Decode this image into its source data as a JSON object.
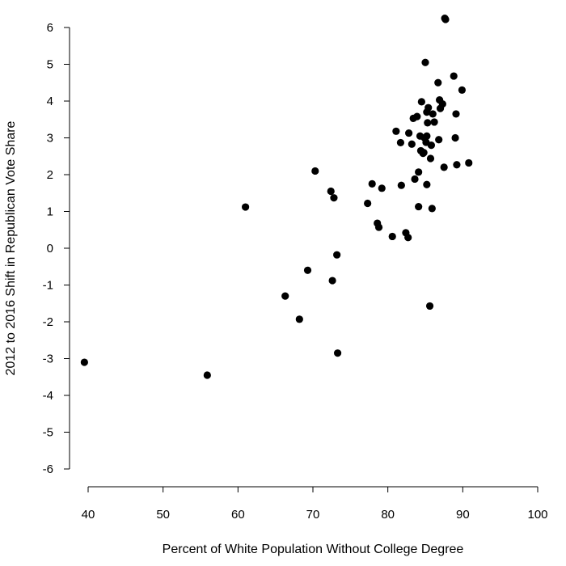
{
  "chart_data": {
    "type": "scatter",
    "title": "",
    "xlabel": "Percent of White Population Without College Degree",
    "ylabel": "2012 to 2016 Shift in Republican Vote Share",
    "xlim": [
      40,
      100
    ],
    "ylim": [
      -6,
      6
    ],
    "xticks": [
      "40",
      "50",
      "60",
      "70",
      "80",
      "90",
      "100"
    ],
    "yticks": [
      "-6",
      "-5",
      "-4",
      "-3",
      "-2",
      "-1",
      "0",
      "1",
      "2",
      "3",
      "4",
      "5",
      "6"
    ],
    "grid": false,
    "marker_color": "#000000",
    "series": [
      {
        "points": [
          {
            "x": 39.5,
            "y": -3.1
          },
          {
            "x": 55.9,
            "y": -3.45
          },
          {
            "x": 61.0,
            "y": 1.12
          },
          {
            "x": 66.3,
            "y": -1.3
          },
          {
            "x": 68.2,
            "y": -1.93
          },
          {
            "x": 69.3,
            "y": -0.6
          },
          {
            "x": 70.3,
            "y": 2.1
          },
          {
            "x": 72.4,
            "y": 1.55
          },
          {
            "x": 72.6,
            "y": -0.88
          },
          {
            "x": 72.8,
            "y": 1.37
          },
          {
            "x": 73.2,
            "y": -0.18
          },
          {
            "x": 73.3,
            "y": -2.85
          },
          {
            "x": 77.3,
            "y": 1.22
          },
          {
            "x": 77.9,
            "y": 1.75
          },
          {
            "x": 78.6,
            "y": 0.68
          },
          {
            "x": 78.8,
            "y": 0.57
          },
          {
            "x": 79.2,
            "y": 1.63
          },
          {
            "x": 80.6,
            "y": 0.32
          },
          {
            "x": 81.1,
            "y": 3.18
          },
          {
            "x": 81.7,
            "y": 2.87
          },
          {
            "x": 81.8,
            "y": 1.71
          },
          {
            "x": 82.4,
            "y": 0.42
          },
          {
            "x": 82.7,
            "y": 0.29
          },
          {
            "x": 82.8,
            "y": 3.13
          },
          {
            "x": 83.2,
            "y": 2.83
          },
          {
            "x": 83.4,
            "y": 3.53
          },
          {
            "x": 83.6,
            "y": 1.88
          },
          {
            "x": 83.9,
            "y": 3.58
          },
          {
            "x": 84.1,
            "y": 2.07
          },
          {
            "x": 84.1,
            "y": 1.13
          },
          {
            "x": 84.3,
            "y": 3.05
          },
          {
            "x": 84.4,
            "y": 2.65
          },
          {
            "x": 84.5,
            "y": 3.98
          },
          {
            "x": 84.7,
            "y": 2.58
          },
          {
            "x": 84.8,
            "y": 2.6
          },
          {
            "x": 84.9,
            "y": 3.0
          },
          {
            "x": 85.0,
            "y": 5.05
          },
          {
            "x": 85.1,
            "y": 2.88
          },
          {
            "x": 85.2,
            "y": 3.7
          },
          {
            "x": 85.2,
            "y": 3.05
          },
          {
            "x": 85.2,
            "y": 1.73
          },
          {
            "x": 85.3,
            "y": 3.41
          },
          {
            "x": 85.4,
            "y": 3.82
          },
          {
            "x": 85.6,
            "y": -1.57
          },
          {
            "x": 85.7,
            "y": 2.44
          },
          {
            "x": 85.8,
            "y": 2.8
          },
          {
            "x": 85.9,
            "y": 1.08
          },
          {
            "x": 86.0,
            "y": 3.65
          },
          {
            "x": 86.2,
            "y": 3.43
          },
          {
            "x": 86.7,
            "y": 4.5
          },
          {
            "x": 86.8,
            "y": 2.95
          },
          {
            "x": 86.9,
            "y": 4.03
          },
          {
            "x": 87.0,
            "y": 3.8
          },
          {
            "x": 87.3,
            "y": 3.92
          },
          {
            "x": 87.5,
            "y": 2.2
          },
          {
            "x": 87.6,
            "y": 6.25
          },
          {
            "x": 87.7,
            "y": 6.22
          },
          {
            "x": 88.8,
            "y": 4.68
          },
          {
            "x": 89.0,
            "y": 3.0
          },
          {
            "x": 89.1,
            "y": 3.65
          },
          {
            "x": 89.2,
            "y": 2.27
          },
          {
            "x": 89.9,
            "y": 4.3
          },
          {
            "x": 90.8,
            "y": 2.32
          }
        ]
      }
    ]
  }
}
